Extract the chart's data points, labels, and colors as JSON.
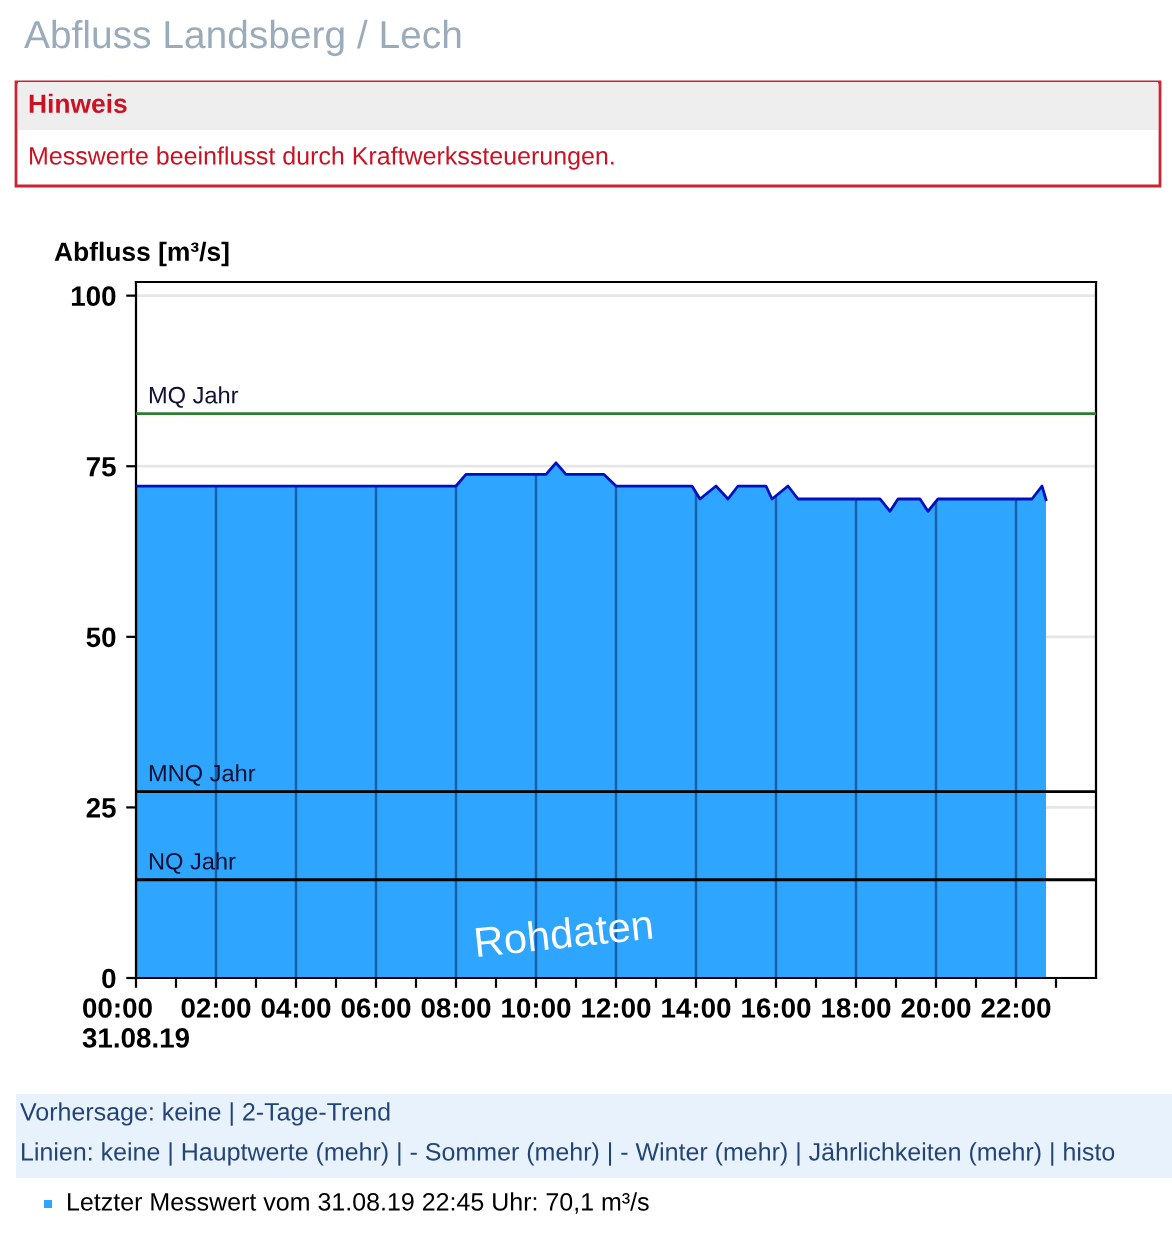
{
  "chart_data": {
    "type": "area",
    "title": "Abfluss Landsberg / Lech",
    "ylabel": "Abfluss [m³/s]",
    "annotations": [
      "Hinweis",
      "Messwerte beeinflusst durch Kraftwerkssteuerungen.",
      "Rohdaten",
      "Vorhersage: keine | 2-Tage-Trend",
      "Linien: keine | Hauptwerte (mehr) | - Sommer (mehr) | - Winter (mehr) | Jährlichkeiten (mehr) | histo",
      "Letzter Messwert vom 31.08.19 22:45 Uhr: 70,1 m³/s"
    ],
    "series": [
      {
        "color": "#2ea6ff",
        "x": [
          0,
          8.0,
          8.25,
          10.25,
          10.5,
          10.75,
          11.7,
          12.0,
          13.9,
          14.1,
          14.5,
          14.8,
          15.05,
          15.75,
          15.9,
          16.3,
          16.55,
          18.6,
          18.85,
          19.05,
          19.6,
          19.8,
          20.05,
          22.4,
          22.65,
          22.75
        ],
        "values": [
          72.1,
          72.1,
          73.8,
          73.8,
          75.5,
          73.8,
          73.8,
          72.1,
          72.1,
          70.2,
          72.1,
          70.2,
          72.1,
          72.1,
          70.2,
          72.1,
          70.2,
          70.2,
          68.4,
          70.2,
          70.2,
          68.4,
          70.2,
          70.2,
          72.1,
          70.1
        ]
      }
    ],
    "xlim": [
      0,
      24
    ],
    "ylim": [
      0,
      102
    ],
    "xticks": [
      {
        "value": 0,
        "label": "00:00\n31.08.19"
      },
      {
        "value": 1,
        "label": null
      },
      {
        "value": 2,
        "label": "02:00"
      },
      {
        "value": 3,
        "label": null
      },
      {
        "value": 4,
        "label": "04:00"
      },
      {
        "value": 5,
        "label": null
      },
      {
        "value": 6,
        "label": "06:00"
      },
      {
        "value": 7,
        "label": null
      },
      {
        "value": 8,
        "label": "08:00"
      },
      {
        "value": 9,
        "label": null
      },
      {
        "value": 10,
        "label": "10:00"
      },
      {
        "value": 11,
        "label": null
      },
      {
        "value": 12,
        "label": "12:00"
      },
      {
        "value": 13,
        "label": null
      },
      {
        "value": 14,
        "label": "14:00"
      },
      {
        "value": 15,
        "label": null
      },
      {
        "value": 16,
        "label": "16:00"
      },
      {
        "value": 17,
        "label": null
      },
      {
        "value": 18,
        "label": "18:00"
      },
      {
        "value": 19,
        "label": null
      },
      {
        "value": 20,
        "label": "20:00"
      },
      {
        "value": 21,
        "label": null
      },
      {
        "value": 22,
        "label": "22:00"
      },
      {
        "value": 23,
        "label": null
      }
    ],
    "yticks": [
      0,
      25,
      50,
      75,
      100
    ],
    "ref_lines": [
      {
        "axis": "y",
        "value": 82.7,
        "label": "MQ Jahr",
        "color": "#2e7d32"
      },
      {
        "axis": "y",
        "value": 27.3,
        "label": "MNQ Jahr",
        "color": "#000000"
      },
      {
        "axis": "y",
        "value": 14.4,
        "label": "NQ Jahr",
        "color": "#000000"
      }
    ],
    "grid": true,
    "legend": false
  }
}
